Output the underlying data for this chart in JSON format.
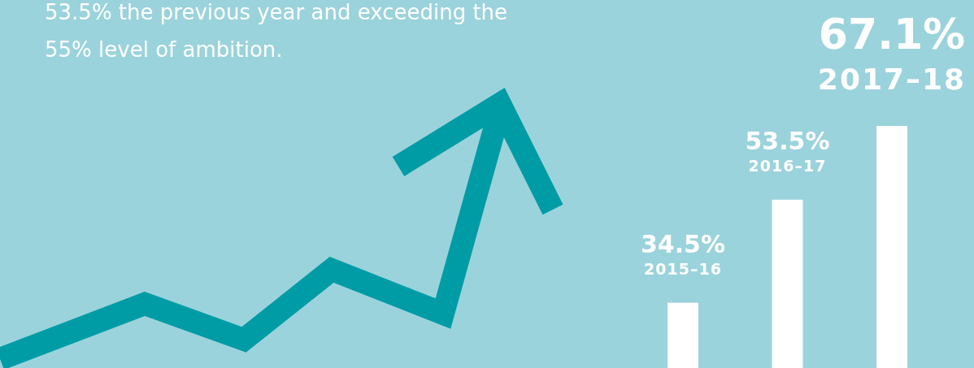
{
  "chart_data": {
    "type": "bar",
    "categories": [
      "2015–16",
      "2016–17",
      "2017–18"
    ],
    "values": [
      34.5,
      53.5,
      67.1
    ],
    "value_labels": [
      "34.5%",
      "53.5%",
      "67.1%"
    ],
    "color": "#ffffff",
    "annotations": [
      "53.5% the previous year and exceeding the",
      "55% level of ambition."
    ]
  }
}
